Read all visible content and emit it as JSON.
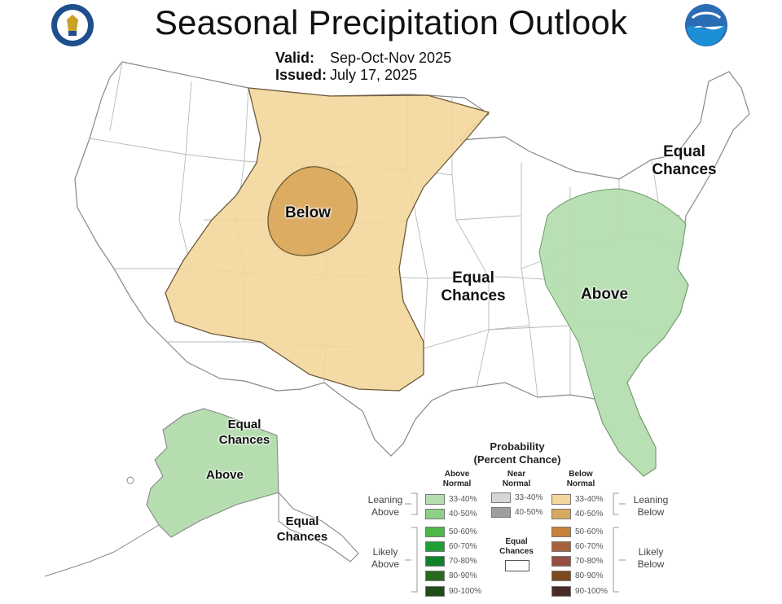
{
  "header": {
    "title": "Seasonal Precipitation Outlook",
    "valid_label": "Valid:",
    "valid_value": "Sep-Oct-Nov 2025",
    "issued_label": "Issued:",
    "issued_value": "July 17, 2025"
  },
  "logos": {
    "left": "department-of-commerce-seal",
    "right": "noaa-logo"
  },
  "map_labels": {
    "below": "Below",
    "central_equal": [
      "Equal",
      "Chances"
    ],
    "northeast_equal": [
      "Equal",
      "Chances"
    ],
    "east_above": "Above",
    "alaska_equal_north": [
      "Equal",
      "Chances"
    ],
    "alaska_above": "Above",
    "alaska_equal_south": [
      "Equal",
      "Chances"
    ]
  },
  "legend": {
    "title": [
      "Probability",
      "(Percent Chance)"
    ],
    "columns": {
      "above": [
        "Above",
        "Normal"
      ],
      "near": [
        "Near",
        "Normal"
      ],
      "below": [
        "Below",
        "Normal"
      ]
    },
    "side_labels": {
      "leaning_above": [
        "Leaning",
        "Above"
      ],
      "likely_above": [
        "Likely",
        "Above"
      ],
      "leaning_below": [
        "Leaning",
        "Below"
      ],
      "likely_below": [
        "Likely",
        "Below"
      ]
    },
    "equal_chances": [
      "Equal",
      "Chances"
    ],
    "above_rows": [
      {
        "range": "33-40%",
        "color": "#b5ddb0"
      },
      {
        "range": "40-50%",
        "color": "#8fd087"
      },
      {
        "range": "50-60%",
        "color": "#4db848"
      },
      {
        "range": "60-70%",
        "color": "#1e9e34"
      },
      {
        "range": "70-80%",
        "color": "#11822a"
      },
      {
        "range": "80-90%",
        "color": "#2a6a1e"
      },
      {
        "range": "90-100%",
        "color": "#1d4d14"
      }
    ],
    "near_rows": [
      {
        "range": "33-40%",
        "color": "#d6d6d6"
      },
      {
        "range": "40-50%",
        "color": "#9e9e9e"
      }
    ],
    "below_rows": [
      {
        "range": "33-40%",
        "color": "#f3d69a"
      },
      {
        "range": "40-50%",
        "color": "#d9aa5e"
      },
      {
        "range": "50-60%",
        "color": "#c7813b"
      },
      {
        "range": "60-70%",
        "color": "#a7623c"
      },
      {
        "range": "70-80%",
        "color": "#955043"
      },
      {
        "range": "80-90%",
        "color": "#7a4a1c"
      },
      {
        "range": "90-100%",
        "color": "#4a2a28"
      }
    ]
  },
  "colors": {
    "below_leaning": "#f3d69a",
    "below_40_50": "#d9aa5e",
    "above_leaning": "#b5ddb0",
    "state_lines": "#b8b8b8",
    "country_outline": "#888888"
  }
}
